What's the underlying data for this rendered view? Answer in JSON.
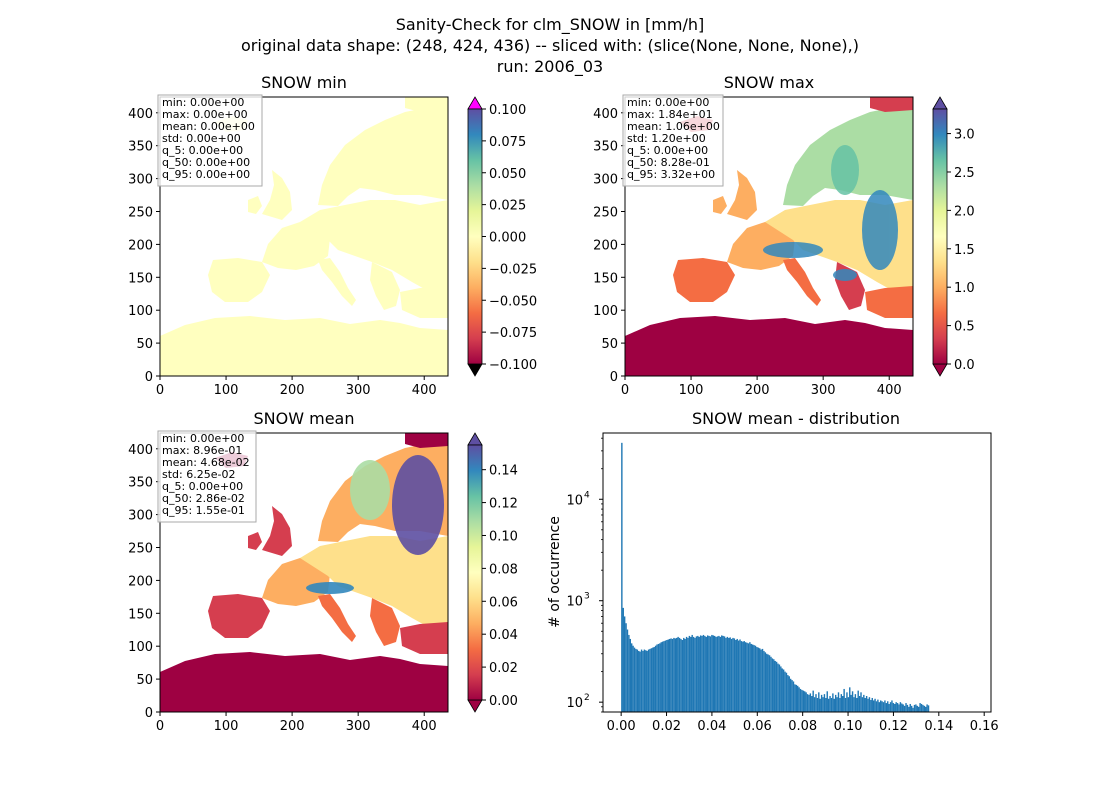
{
  "figure": {
    "suptitle_lines": [
      "Sanity-Check for clm_SNOW in [mm/h]",
      "original data shape: (248, 424, 436) -- sliced with: (slice(None, None, None),)",
      "run: 2006_03"
    ]
  },
  "colors": {
    "spectral_r": [
      "#9e0142",
      "#d53e4f",
      "#f46d43",
      "#fdae61",
      "#fee08b",
      "#ffffbf",
      "#e6f598",
      "#abdda4",
      "#66c2a5",
      "#3288bd",
      "#5e4fa2"
    ],
    "land_min": "#ffffbf",
    "histogram_bar": "#1f77b4",
    "over_color_min": "#ff00ff",
    "under_color_min": "#000000"
  },
  "chart_data": [
    {
      "type": "heatmap",
      "title": "SNOW min",
      "xlim": [
        0,
        436
      ],
      "ylim": [
        0,
        424
      ],
      "xticks": [
        "0",
        "100",
        "200",
        "300",
        "400"
      ],
      "yticks": [
        "0",
        "50",
        "100",
        "150",
        "200",
        "250",
        "300",
        "350",
        "400"
      ],
      "colorbar": {
        "ticks": [
          "−0.100",
          "−0.075",
          "−0.050",
          "−0.025",
          "0.000",
          "0.025",
          "0.050",
          "0.075",
          "0.100"
        ],
        "range": [
          -0.1,
          0.1
        ],
        "extend": "both"
      },
      "stats": [
        "min: 0.00e+00",
        "max: 0.00e+00",
        "mean: 0.00e+00",
        "std: 0.00e+00",
        "q_5: 0.00e+00",
        "q_50: 0.00e+00",
        "q_95: 0.00e+00"
      ]
    },
    {
      "type": "heatmap",
      "title": "SNOW max",
      "xlim": [
        0,
        436
      ],
      "ylim": [
        0,
        424
      ],
      "xticks": [
        "0",
        "100",
        "200",
        "300",
        "400"
      ],
      "yticks": [
        "0",
        "50",
        "100",
        "150",
        "200",
        "250",
        "300",
        "350",
        "400"
      ],
      "colorbar": {
        "ticks": [
          "0.0",
          "0.5",
          "1.0",
          "1.5",
          "2.0",
          "2.5",
          "3.0"
        ],
        "range": [
          0,
          3.32
        ],
        "extend": "both"
      },
      "stats": [
        "min: 0.00e+00",
        "max: 1.84e+01",
        "mean: 1.06e+00",
        "std: 1.20e+00",
        "q_5: 0.00e+00",
        "q_50: 8.28e-01",
        "q_95: 3.32e+00"
      ]
    },
    {
      "type": "heatmap",
      "title": "SNOW mean",
      "xlim": [
        0,
        436
      ],
      "ylim": [
        0,
        424
      ],
      "xticks": [
        "0",
        "100",
        "200",
        "300",
        "400"
      ],
      "yticks": [
        "0",
        "50",
        "100",
        "150",
        "200",
        "250",
        "300",
        "350",
        "400"
      ],
      "colorbar": {
        "ticks": [
          "0.00",
          "0.02",
          "0.04",
          "0.06",
          "0.08",
          "0.10",
          "0.12",
          "0.14"
        ],
        "range": [
          0,
          0.155
        ],
        "extend": "both"
      },
      "stats": [
        "min: 0.00e+00",
        "max: 8.96e-01",
        "mean: 4.68e-02",
        "std: 6.25e-02",
        "q_5: 0.00e+00",
        "q_50: 2.86e-02",
        "q_95: 1.55e-01"
      ]
    },
    {
      "type": "bar",
      "title": "SNOW mean - distribution",
      "ylabel": "# of occurrence",
      "xlabel": "",
      "yscale": "log",
      "xlim": [
        -0.008,
        0.163
      ],
      "ylim": [
        80,
        45000
      ],
      "xticks": [
        0,
        0.02,
        0.04,
        0.06,
        0.08,
        0.1,
        0.12,
        0.14,
        0.16
      ],
      "xtick_labels": [
        "0.00",
        "0.02",
        "0.04",
        "0.06",
        "0.08",
        "0.10",
        "0.12",
        "0.14",
        "0.16"
      ],
      "yticks": [
        {
          "value": 100,
          "base": "10",
          "exp": "2"
        },
        {
          "value": 1000,
          "base": "10",
          "exp": "3"
        },
        {
          "value": 10000,
          "base": "10",
          "exp": "4"
        }
      ],
      "bin_start": 0,
      "bin_width": 0.00062,
      "counts": [
        36000,
        850,
        700,
        600,
        520,
        460,
        420,
        380,
        360,
        345,
        335,
        330,
        320,
        315,
        330,
        320,
        330,
        325,
        320,
        330,
        335,
        340,
        345,
        350,
        360,
        370,
        375,
        380,
        390,
        395,
        400,
        405,
        410,
        415,
        420,
        425,
        420,
        430,
        425,
        430,
        440,
        430,
        420,
        410,
        430,
        420,
        440,
        430,
        450,
        440,
        460,
        440,
        430,
        445,
        450,
        440,
        455,
        450,
        460,
        450,
        440,
        455,
        450,
        445,
        460,
        455,
        450,
        440,
        445,
        450,
        440,
        455,
        450,
        445,
        430,
        440,
        430,
        435,
        420,
        430,
        425,
        410,
        420,
        405,
        415,
        400,
        395,
        400,
        390,
        385,
        380,
        390,
        375,
        370,
        365,
        360,
        350,
        345,
        340,
        330,
        335,
        320,
        310,
        300,
        295,
        290,
        280,
        270,
        265,
        255,
        250,
        240,
        235,
        225,
        215,
        210,
        200,
        195,
        185,
        180,
        170,
        165,
        160,
        150,
        148,
        145,
        140,
        135,
        132,
        130,
        128,
        125,
        120,
        118,
        122,
        115,
        130,
        112,
        120,
        110,
        125,
        108,
        118,
        112,
        120,
        110,
        128,
        108,
        115,
        110,
        122,
        108,
        118,
        112,
        125,
        110,
        120,
        115,
        135,
        110,
        125,
        112,
        140,
        118,
        128,
        112,
        120,
        110,
        130,
        115,
        125,
        112,
        118,
        110,
        115,
        108,
        112,
        105,
        110,
        104,
        108,
        102,
        106,
        100,
        104,
        102,
        100,
        104,
        98,
        102,
        96,
        100,
        104,
        98,
        96,
        100,
        98,
        95,
        100,
        97,
        95,
        92,
        98,
        94,
        90,
        96,
        92,
        88,
        94,
        95,
        92,
        90,
        98,
        96,
        94,
        92,
        90,
        95,
        93
      ]
    }
  ]
}
